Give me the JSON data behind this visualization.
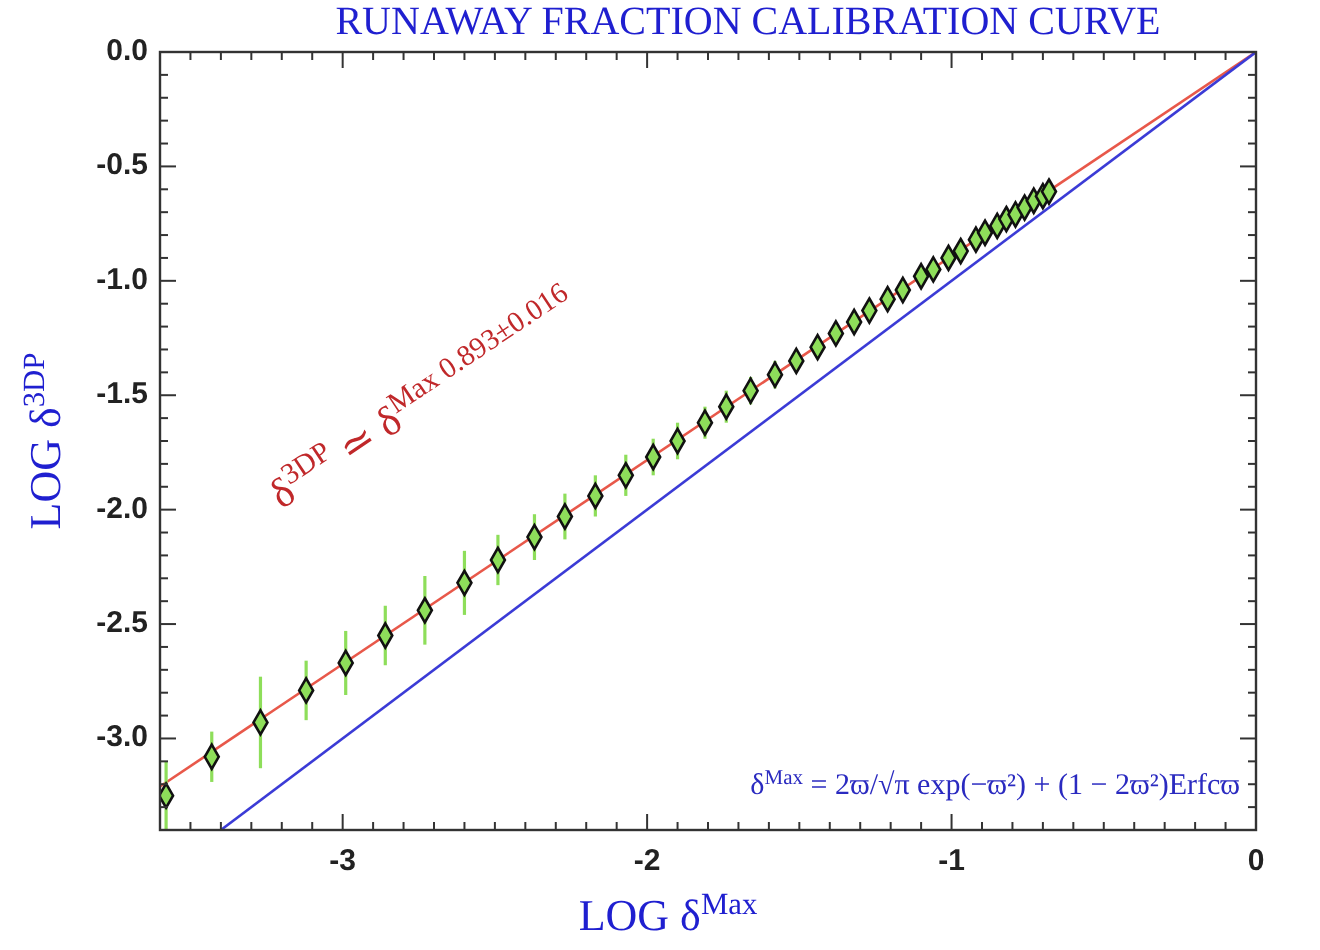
{
  "chart_data": {
    "type": "scatter",
    "title": "RUNAWAY FRACTION CALIBRATION CURVE",
    "xlabel": "LOG δ$^{Max}$",
    "ylabel": "LOG δ$^{3DP}$",
    "xlim": [
      -3.6,
      0
    ],
    "ylim": [
      -3.4,
      0
    ],
    "xticks": [
      {
        "value": -3.5,
        "label": null
      },
      {
        "value": -3.4,
        "label": null
      },
      {
        "value": -3.3,
        "label": null
      },
      {
        "value": -3.2,
        "label": null
      },
      {
        "value": -3.1,
        "label": null
      },
      -3,
      {
        "value": -2.9,
        "label": null
      },
      {
        "value": -2.8,
        "label": null
      },
      {
        "value": -2.7,
        "label": null
      },
      {
        "value": -2.6,
        "label": null
      },
      {
        "value": -2.5,
        "label": null
      },
      {
        "value": -2.4,
        "label": null
      },
      {
        "value": -2.3,
        "label": null
      },
      {
        "value": -2.2,
        "label": null
      },
      {
        "value": -2.1,
        "label": null
      },
      -2,
      {
        "value": -1.9,
        "label": null
      },
      {
        "value": -1.8,
        "label": null
      },
      {
        "value": -1.7,
        "label": null
      },
      {
        "value": -1.6,
        "label": null
      },
      {
        "value": -1.5,
        "label": null
      },
      {
        "value": -1.4,
        "label": null
      },
      {
        "value": -1.3,
        "label": null
      },
      {
        "value": -1.2,
        "label": null
      },
      {
        "value": -1.1,
        "label": null
      },
      -1,
      {
        "value": -0.9,
        "label": null
      },
      {
        "value": -0.8,
        "label": null
      },
      {
        "value": -0.7,
        "label": null
      },
      {
        "value": -0.6,
        "label": null
      },
      {
        "value": -0.5,
        "label": null
      },
      {
        "value": -0.4,
        "label": null
      },
      {
        "value": -0.3,
        "label": null
      },
      {
        "value": -0.2,
        "label": null
      },
      {
        "value": -0.1,
        "label": null
      },
      0
    ],
    "yticks": [
      {
        "value": 0,
        "label": "0.0"
      },
      {
        "value": -0.1,
        "label": null
      },
      {
        "value": -0.2,
        "label": null
      },
      {
        "value": -0.3,
        "label": null
      },
      {
        "value": -0.4,
        "label": null
      },
      {
        "value": -0.5,
        "label": "-0.5"
      },
      {
        "value": -0.6,
        "label": null
      },
      {
        "value": -0.7,
        "label": null
      },
      {
        "value": -0.8,
        "label": null
      },
      {
        "value": -0.9,
        "label": null
      },
      {
        "value": -1,
        "label": "-1.0"
      },
      {
        "value": -1.1,
        "label": null
      },
      {
        "value": -1.2,
        "label": null
      },
      {
        "value": -1.3,
        "label": null
      },
      {
        "value": -1.4,
        "label": null
      },
      {
        "value": -1.5,
        "label": "-1.5"
      },
      {
        "value": -1.6,
        "label": null
      },
      {
        "value": -1.7,
        "label": null
      },
      {
        "value": -1.8,
        "label": null
      },
      {
        "value": -1.9,
        "label": null
      },
      {
        "value": -2,
        "label": "-2.0"
      },
      {
        "value": -2.1,
        "label": null
      },
      {
        "value": -2.2,
        "label": null
      },
      {
        "value": -2.3,
        "label": null
      },
      {
        "value": -2.4,
        "label": null
      },
      {
        "value": -2.5,
        "label": "-2.5"
      },
      {
        "value": -2.6,
        "label": null
      },
      {
        "value": -2.7,
        "label": null
      },
      {
        "value": -2.8,
        "label": null
      },
      {
        "value": -2.9,
        "label": null
      },
      {
        "value": -3,
        "label": "-3.0"
      },
      {
        "value": -3.1,
        "label": null
      },
      {
        "value": -3.2,
        "label": null
      },
      {
        "value": -3.3,
        "label": null
      }
    ],
    "grid": false,
    "series": [
      {
        "type": "line",
        "color": "#e8584a",
        "line_style": "solid",
        "x": [
          -3.6,
          0
        ],
        "values": [
          -3.21,
          0
        ]
      },
      {
        "type": "line",
        "color": "#3b3bd6",
        "line_style": "solid",
        "x": [
          -3.4,
          0
        ],
        "values": [
          -3.4,
          0
        ]
      },
      {
        "marker": "diamond",
        "color": "#8ede5a",
        "x": [
          -3.58,
          -3.43,
          -3.27,
          -3.12,
          -2.99,
          -2.86,
          -2.73,
          -2.6,
          -2.49,
          -2.37,
          -2.27,
          -2.17,
          -2.07,
          -1.98,
          -1.9,
          -1.81,
          -1.74,
          -1.66,
          -1.58,
          -1.51,
          -1.44,
          -1.38,
          -1.32,
          -1.27,
          -1.21,
          -1.16,
          -1.1,
          -1.06,
          -1.01,
          -0.97,
          -0.92,
          -0.89,
          -0.85,
          -0.82,
          -0.79,
          -0.76,
          -0.73,
          -0.7,
          -0.68
        ],
        "values": [
          -3.25,
          -3.08,
          -2.93,
          -2.79,
          -2.67,
          -2.55,
          -2.44,
          -2.32,
          -2.22,
          -2.12,
          -2.03,
          -1.94,
          -1.85,
          -1.77,
          -1.7,
          -1.62,
          -1.55,
          -1.48,
          -1.41,
          -1.35,
          -1.29,
          -1.23,
          -1.18,
          -1.13,
          -1.08,
          -1.04,
          -0.98,
          -0.95,
          -0.9,
          -0.87,
          -0.82,
          -0.79,
          -0.76,
          -0.73,
          -0.71,
          -0.68,
          -0.65,
          -0.63,
          -0.61
        ],
        "errors": [
          0.15,
          0.11,
          0.2,
          0.13,
          0.14,
          0.13,
          0.15,
          0.14,
          0.11,
          0.1,
          0.1,
          0.09,
          0.09,
          0.08,
          0.08,
          0.07,
          0.07,
          0.06,
          0.06,
          0.05,
          0.05,
          0.05,
          0.04,
          0.04,
          0.04,
          0.04,
          0.03,
          0.03,
          0.03,
          0.03,
          0.03,
          0.03,
          0.02,
          0.02,
          0.02,
          0.02,
          0.02,
          0.02,
          0.02
        ]
      }
    ],
    "annotations": [
      "δ$^{3DP}$ ≃ δ$^{Max 0.893±0.016}$",
      "δ$^{Max}$ = 2ϖ/√π exp(−ϖ²) + (1 − 2ϖ²)Erfcϖ"
    ]
  }
}
